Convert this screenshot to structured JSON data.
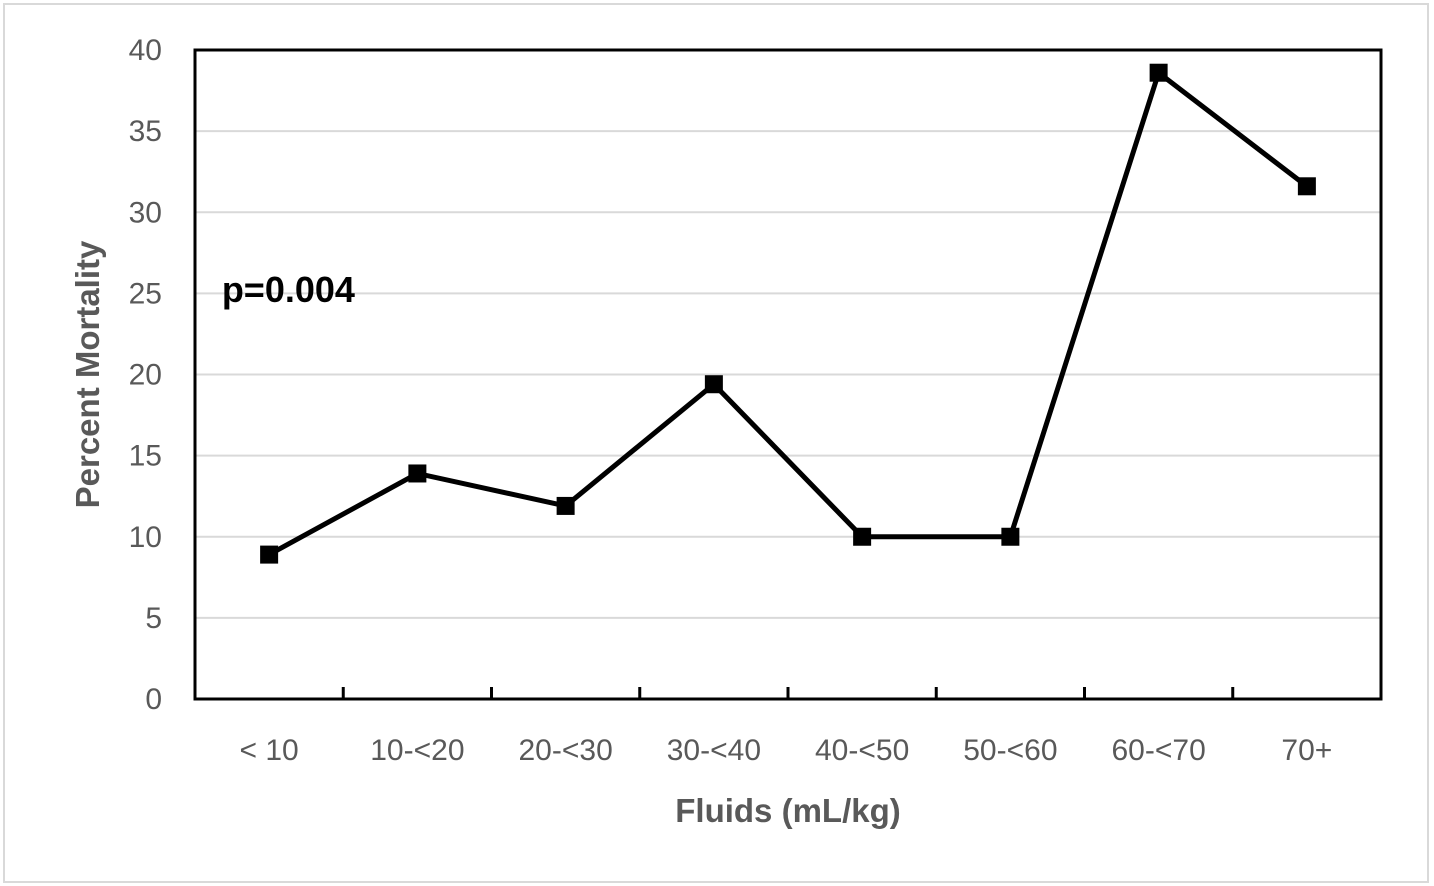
{
  "chart_data": {
    "type": "line",
    "categories": [
      "< 10",
      "10-<20",
      "20-<30",
      "30-<40",
      "40-<50",
      "50-<60",
      "60-<70",
      "70+"
    ],
    "series": [
      {
        "values": [
          8.9,
          13.9,
          11.9,
          19.4,
          10.0,
          10.0,
          38.6,
          31.6
        ],
        "color": "#000000",
        "marker": "square"
      }
    ],
    "xlabel": "Fluids (mL/kg)",
    "ylabel": "Percent Mortality",
    "ylim": [
      0,
      40
    ],
    "yticks": [
      0,
      5,
      10,
      15,
      20,
      25,
      30,
      35,
      40
    ],
    "grid": true,
    "annotations": [
      {
        "text": "p=0.004",
        "x_category_index": 0.1,
        "y": 25.2
      }
    ],
    "colors": {
      "line": "#000000",
      "grid": "#d9d9d9",
      "axis": "#000000",
      "text": "#595959",
      "outer_border": "#d9d9d9"
    }
  }
}
